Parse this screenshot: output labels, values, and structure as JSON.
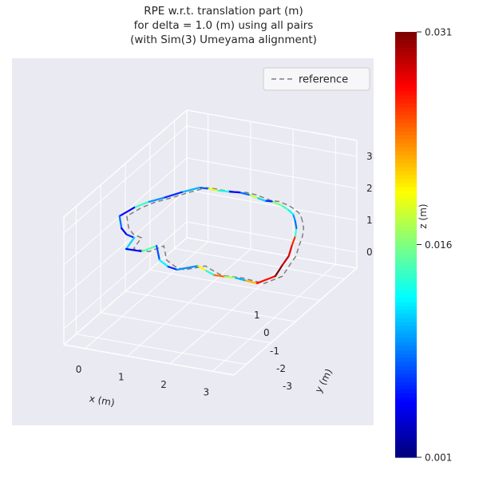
{
  "title": {
    "line1": "RPE w.r.t. translation part (m)",
    "line2": "for delta = 1.0 (m) using all pairs",
    "line3": "(with Sim(3) Umeyama alignment)"
  },
  "legend": {
    "entries": [
      "reference"
    ],
    "position": "upper right",
    "line_style": "dashed"
  },
  "colors": {
    "pane": "#eaeaf2",
    "grid": "#ffffff",
    "reference_line": "#7f7f7f",
    "text": "#262626",
    "figure_background": "#ffffff"
  },
  "chart_data": {
    "type": "line",
    "projection": "3d",
    "title": [
      "RPE w.r.t. translation part (m)",
      "for delta = 1.0 (m) using all pairs",
      "(with Sim(3) Umeyama alignment)"
    ],
    "xlabel": "x (m)",
    "ylabel": "y (m)",
    "zlabel": "z (m)",
    "xticks": [
      0,
      1,
      2,
      3
    ],
    "yticks": [
      1,
      0,
      -1,
      -2,
      -3
    ],
    "zticks": [
      0,
      1,
      2,
      3
    ],
    "xlim": [
      -0.5,
      3.5
    ],
    "ylim": [
      -3.5,
      1.5
    ],
    "zlim": [
      -0.5,
      3.5
    ],
    "grid": true,
    "legend_entries": [
      "reference"
    ],
    "colorbar": {
      "cmap": "jet",
      "vmin": 0.001,
      "vmax": 0.031,
      "ticks": [
        0.031,
        0.016,
        0.001
      ],
      "tick_labels": [
        "0.031",
        "0.016",
        "0.001"
      ]
    },
    "series": [
      {
        "name": "trajectory_colored_by_rpe",
        "note": "points are [x, y, z, rpe_error_m]; segment color = jet((err-vmin)/(vmax-vmin))",
        "points": [
          [
            2.71,
            0.36,
            1.55,
            0.009
          ],
          [
            2.55,
            0.55,
            1.6,
            0.012
          ],
          [
            2.33,
            0.72,
            1.58,
            0.014
          ],
          [
            2.13,
            0.79,
            1.62,
            0.016
          ],
          [
            1.85,
            0.9,
            1.6,
            0.006
          ],
          [
            1.66,
            0.94,
            1.55,
            0.011
          ],
          [
            1.46,
            0.96,
            1.58,
            0.018
          ],
          [
            1.25,
            1.0,
            1.6,
            0.008
          ],
          [
            1.03,
            1.0,
            1.62,
            0.005
          ],
          [
            0.78,
            0.98,
            1.6,
            0.013
          ],
          [
            0.52,
            0.97,
            1.58,
            0.019
          ],
          [
            0.3,
            0.95,
            1.6,
            0.007
          ],
          [
            0.14,
            0.91,
            1.62,
            0.01
          ],
          [
            -0.13,
            0.66,
            1.58,
            0.006
          ],
          [
            -0.38,
            0.35,
            1.55,
            0.009
          ],
          [
            -0.58,
            0.05,
            1.57,
            0.014
          ],
          [
            -0.7,
            -0.29,
            1.6,
            0.005
          ],
          [
            -0.81,
            -0.7,
            1.58,
            0.008
          ],
          [
            -0.52,
            -1.12,
            1.55,
            0.004
          ],
          [
            -0.3,
            -1.3,
            1.53,
            0.006
          ],
          [
            -0.06,
            -1.4,
            1.55,
            0.011
          ],
          [
            0.0,
            -1.83,
            1.5,
            0.005
          ],
          [
            0.38,
            -1.84,
            1.52,
            0.015
          ],
          [
            0.56,
            -1.56,
            1.55,
            0.007
          ],
          [
            0.9,
            -2.03,
            1.5,
            0.012
          ],
          [
            1.2,
            -2.2,
            1.48,
            0.006
          ],
          [
            1.46,
            -2.28,
            1.5,
            0.009
          ],
          [
            1.8,
            -2.01,
            1.52,
            0.02
          ],
          [
            2.05,
            -2.12,
            1.5,
            0.013
          ],
          [
            2.29,
            -2.21,
            1.48,
            0.024
          ],
          [
            2.55,
            -2.22,
            1.5,
            0.017
          ],
          [
            2.8,
            -2.22,
            1.52,
            0.01
          ],
          [
            3.05,
            -2.23,
            1.5,
            0.022
          ],
          [
            3.31,
            -2.23,
            1.48,
            0.027
          ],
          [
            3.52,
            -1.85,
            1.5,
            0.031
          ],
          [
            3.45,
            -1.45,
            1.55,
            0.029
          ],
          [
            3.39,
            -1.08,
            1.58,
            0.028
          ],
          [
            3.22,
            -0.65,
            1.6,
            0.026
          ],
          [
            3.07,
            -0.26,
            1.58,
            0.014
          ],
          [
            2.9,
            0.08,
            1.56,
            0.008
          ],
          [
            2.71,
            0.36,
            1.55,
            0.006
          ]
        ]
      },
      {
        "name": "reference",
        "style": "dashed",
        "color": "#7f7f7f",
        "offset_from_trajectory": [
          0.1,
          0.12,
          -0.06
        ]
      }
    ],
    "error_range_m": [
      0.001,
      0.031
    ]
  }
}
